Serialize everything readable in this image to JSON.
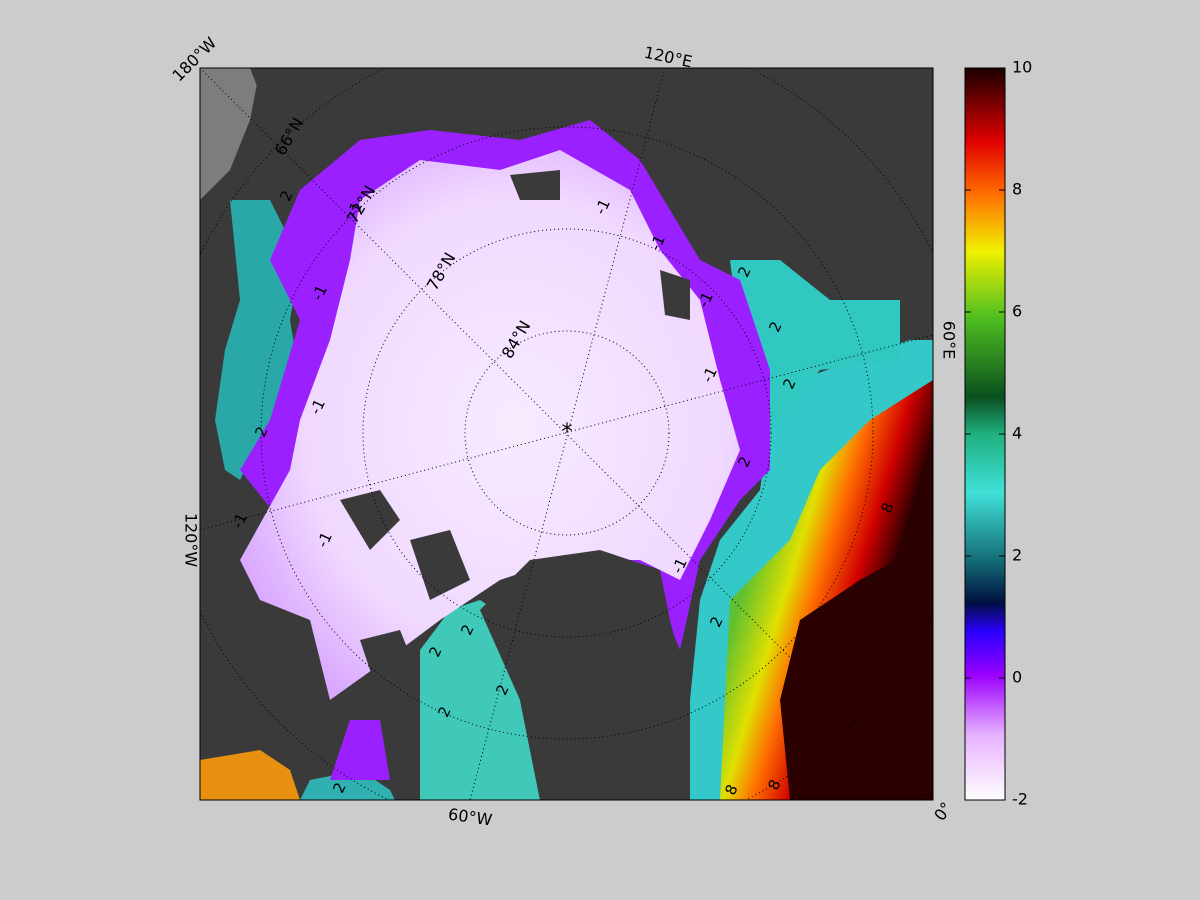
{
  "map": {
    "longitude_labels": [
      "180°W",
      "120°E",
      "60°E",
      "0°",
      "60°W",
      "120°W"
    ],
    "latitude_labels": [
      "66°N",
      "72°N",
      "78°N",
      "84°N"
    ],
    "contour_labels": [
      -1,
      -1,
      -1,
      -1,
      -1,
      -1,
      -1,
      -1,
      -1,
      -1,
      2,
      2,
      2,
      2,
      2,
      2,
      2,
      2,
      2,
      2,
      2,
      2,
      8,
      8,
      8
    ]
  },
  "colorbar": {
    "lim": [
      -2,
      10
    ],
    "ticks": [
      -2,
      0,
      2,
      4,
      6,
      8,
      10
    ]
  }
}
